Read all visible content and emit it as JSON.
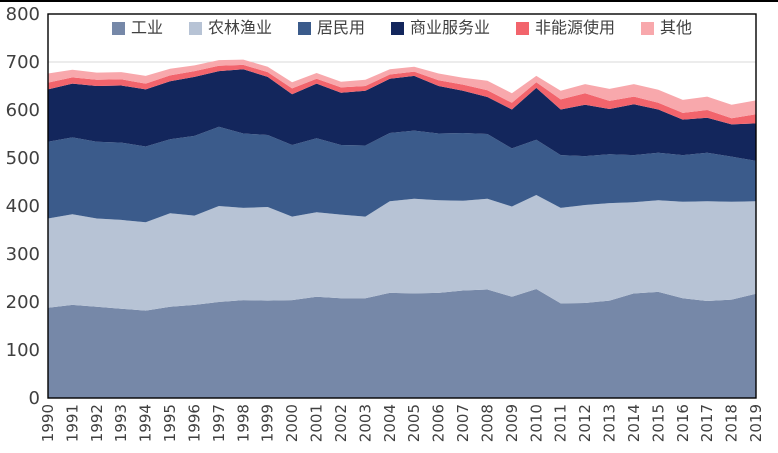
{
  "chart_data": {
    "type": "area",
    "stacked": true,
    "title": "",
    "xlabel": "",
    "ylabel": "",
    "x": [
      1990,
      1991,
      1992,
      1993,
      1994,
      1995,
      1996,
      1997,
      1998,
      1999,
      2000,
      2001,
      2002,
      2003,
      2004,
      2005,
      2006,
      2007,
      2008,
      2009,
      2010,
      2011,
      2012,
      2013,
      2014,
      2015,
      2016,
      2017,
      2018,
      2019
    ],
    "series": [
      {
        "id": "industry",
        "name": "工业",
        "color": "#7688A8",
        "values": [
          188,
          194,
          190,
          186,
          182,
          190,
          194,
          200,
          204,
          203,
          204,
          211,
          208,
          208,
          219,
          218,
          219,
          224,
          226,
          211,
          227,
          197,
          198,
          203,
          218,
          221,
          208,
          202,
          205,
          217
        ]
      },
      {
        "id": "agriculture-forestry-fishery",
        "name": "农林渔业",
        "color": "#B7C3D5",
        "values": [
          186,
          189,
          184,
          185,
          184,
          195,
          186,
          200,
          192,
          195,
          174,
          176,
          174,
          170,
          191,
          197,
          193,
          187,
          189,
          188,
          196,
          199,
          204,
          203,
          190,
          191,
          201,
          208,
          204,
          193
        ]
      },
      {
        "id": "residential",
        "name": "居民用",
        "color": "#3B5B8B",
        "values": [
          160,
          160,
          160,
          161,
          158,
          154,
          166,
          165,
          155,
          150,
          149,
          154,
          145,
          148,
          142,
          142,
          139,
          141,
          135,
          121,
          115,
          110,
          102,
          102,
          98,
          99,
          97,
          101,
          94,
          84
        ]
      },
      {
        "id": "commercial-services",
        "name": "商业服务业",
        "color": "#13265C",
        "values": [
          109,
          112,
          116,
          119,
          119,
          121,
          123,
          116,
          134,
          121,
          106,
          114,
          109,
          114,
          113,
          114,
          99,
          88,
          77,
          81,
          108,
          95,
          107,
          94,
          106,
          90,
          74,
          73,
          67,
          78
        ]
      },
      {
        "id": "non-energy-use",
        "name": "非能源使用",
        "color": "#F2646C",
        "values": [
          14,
          13,
          13,
          13,
          12,
          12,
          12,
          11,
          9,
          10,
          12,
          10,
          11,
          10,
          9,
          9,
          12,
          13,
          14,
          14,
          12,
          21,
          24,
          17,
          16,
          14,
          14,
          16,
          13,
          19
        ]
      },
      {
        "id": "other",
        "name": "其他",
        "color": "#F8A8AC",
        "values": [
          19,
          16,
          15,
          15,
          16,
          14,
          12,
          12,
          11,
          11,
          13,
          12,
          12,
          13,
          11,
          10,
          14,
          14,
          20,
          20,
          13,
          18,
          19,
          25,
          26,
          27,
          27,
          28,
          28,
          29
        ]
      }
    ],
    "ylim": [
      0,
      800
    ],
    "ytick_step": 100,
    "yticks": [
      0,
      100,
      200,
      300,
      400,
      500,
      600,
      700,
      800
    ],
    "grid": "horizontal",
    "legend_position": "top-inside"
  },
  "style": {
    "grid_color": "#D9D9D9",
    "border_color": "#000000",
    "axis_text_color": "#404040",
    "background": "#ffffff"
  }
}
